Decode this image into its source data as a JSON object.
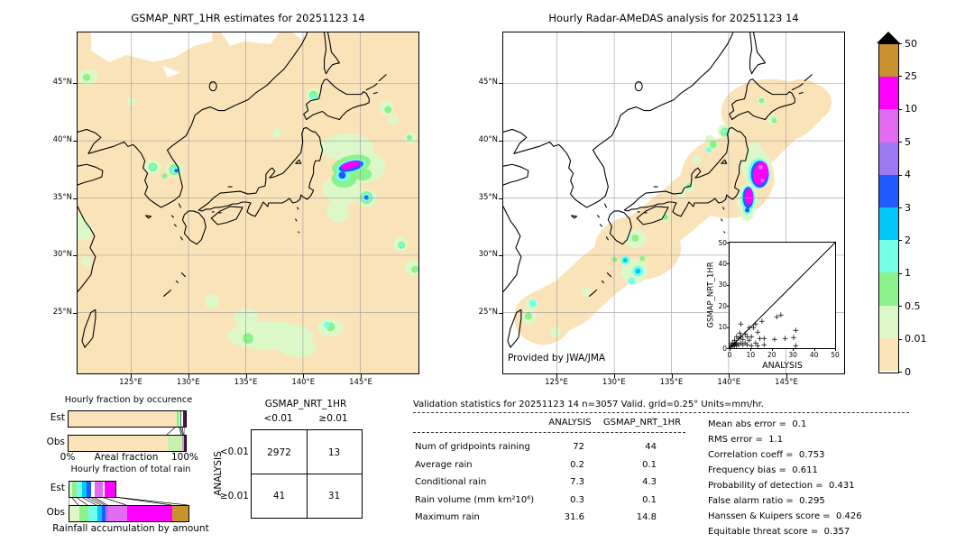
{
  "palette": {
    "peach": "#fbe3b9",
    "palegreen": "#dcf8c9",
    "palegreen2": "#c9efad",
    "green": "#8bf18b",
    "cyan": "#74ffe8",
    "skyblue": "#00c8f8",
    "blue": "#1e5cff",
    "mpurple": "#9c79f3",
    "orchid": "#e36bf2",
    "magenta": "#ff00ff",
    "tan": "#c8932e",
    "white": "#ffffff",
    "gray": "#b0b0b0",
    "teal": "#1f7a4d",
    "plum": "#5b0a66"
  },
  "chart_data": [
    {
      "id": "left_map",
      "type": "map",
      "title": "GSMAP_NRT_1HR estimates for 20251123 14",
      "lat_ticks": [
        "45°N",
        "40°N",
        "35°N",
        "30°N",
        "25°N"
      ],
      "lon_ticks": [
        "125°E",
        "130°E",
        "135°E",
        "140°E",
        "145°E"
      ]
    },
    {
      "id": "right_map",
      "type": "map",
      "title": "Hourly Radar-AMeDAS analysis for 20251123 14",
      "lat_ticks": [
        "45°N",
        "40°N",
        "35°N",
        "30°N",
        "25°N"
      ],
      "lon_ticks": [
        "125°E",
        "130°E",
        "135°E",
        "140°E",
        "145°E"
      ],
      "credit": "Provided by JWA/JMA"
    },
    {
      "id": "inset_scatter",
      "type": "scatter",
      "xlabel": "ANALYSIS",
      "ylabel": "GSMAP_NRT_1HR",
      "xlim": [
        0,
        50
      ],
      "ylim": [
        0,
        50
      ],
      "diagonal": true,
      "x_ticks": [
        "0",
        "10",
        "20",
        "30",
        "40",
        "50"
      ],
      "y_ticks": [
        "0",
        "10",
        "20",
        "30",
        "40",
        "50"
      ],
      "points": [
        [
          0.3,
          0.3
        ],
        [
          0.5,
          1
        ],
        [
          1,
          0.5
        ],
        [
          1,
          2
        ],
        [
          1.5,
          1
        ],
        [
          2,
          0.8
        ],
        [
          2,
          3
        ],
        [
          2.5,
          1.5
        ],
        [
          3,
          0.5
        ],
        [
          3,
          2
        ],
        [
          3,
          5
        ],
        [
          4,
          1
        ],
        [
          4,
          4
        ],
        [
          4.5,
          6.5
        ],
        [
          5,
          2
        ],
        [
          5,
          5
        ],
        [
          5,
          11
        ],
        [
          6,
          1
        ],
        [
          6,
          3.5
        ],
        [
          7,
          2
        ],
        [
          7,
          6
        ],
        [
          8,
          1
        ],
        [
          8,
          5
        ],
        [
          9,
          3
        ],
        [
          9,
          9
        ],
        [
          10,
          0.5
        ],
        [
          10,
          5
        ],
        [
          11,
          9
        ],
        [
          12,
          2
        ],
        [
          12,
          11
        ],
        [
          13,
          0.5
        ],
        [
          13,
          7
        ],
        [
          14,
          4
        ],
        [
          15,
          12
        ],
        [
          16,
          1
        ],
        [
          16,
          4
        ],
        [
          21,
          3.5
        ],
        [
          22,
          14.5
        ],
        [
          24,
          15
        ],
        [
          26,
          4
        ],
        [
          30,
          4.5
        ],
        [
          31,
          8
        ],
        [
          31,
          0.5
        ]
      ]
    },
    {
      "id": "colorbar",
      "type": "colorbar",
      "tick_labels": [
        "50",
        "25",
        "10",
        "5",
        "4",
        "3",
        "2",
        "1",
        "0.5",
        "0.01",
        "0"
      ],
      "colors": [
        "tan",
        "magenta",
        "orchid",
        "mpurple",
        "blue",
        "skyblue",
        "cyan",
        "green",
        "palegreen",
        "peach"
      ],
      "overflow": "black-triangle"
    },
    {
      "id": "occurrence",
      "type": "bar",
      "title": "Hourly fraction by occurence",
      "xlabel": "Areal fraction",
      "x_min_label": "0%",
      "x_max_label": "100%",
      "rows": [
        {
          "label": "Est",
          "segments": [
            [
              92.3,
              "peach"
            ],
            [
              2.7,
              "green"
            ],
            [
              1.2,
              "teal"
            ],
            [
              1.5,
              "white"
            ],
            [
              2.3,
              "plum"
            ]
          ]
        },
        {
          "label": "Obs",
          "segments": [
            [
              84.6,
              "peach"
            ],
            [
              12.3,
              "palegreen2"
            ],
            [
              1.2,
              "gray"
            ],
            [
              1.9,
              "plum"
            ]
          ]
        }
      ]
    },
    {
      "id": "total_rain",
      "type": "bar",
      "title": "Hourly fraction of total rain",
      "xlabel": "Rainfall accumulation by amount",
      "rows": [
        {
          "label": "Est",
          "segments": [
            [
              2.3,
              "palegreen"
            ],
            [
              3.8,
              "green"
            ],
            [
              4.5,
              "cyan"
            ],
            [
              3.8,
              "skyblue"
            ],
            [
              3.8,
              "blue"
            ],
            [
              3.0,
              "white"
            ],
            [
              6.8,
              "orchid"
            ],
            [
              1.5,
              "white"
            ],
            [
              9.1,
              "magenta"
            ]
          ]
        },
        {
          "label": "Obs",
          "segments": [
            [
              8.3,
              "palegreen"
            ],
            [
              7.6,
              "green"
            ],
            [
              7.6,
              "cyan"
            ],
            [
              3.8,
              "skyblue"
            ],
            [
              3.0,
              "blue"
            ],
            [
              2.3,
              "mpurple"
            ],
            [
              15.9,
              "orchid"
            ],
            [
              37.9,
              "magenta"
            ],
            [
              13.6,
              "tan"
            ]
          ]
        }
      ]
    },
    {
      "id": "contingency",
      "type": "table",
      "col_header": "GSMAP_NRT_1HR",
      "row_header": "ANALYSIS",
      "col_labels": [
        "<0.01",
        "≥0.01"
      ],
      "row_labels": [
        "<0.01",
        "≥0.01"
      ],
      "matrix": [
        [
          "2972",
          "13"
        ],
        [
          "41",
          "31"
        ]
      ]
    },
    {
      "id": "validation",
      "type": "table",
      "title": "Validation statistics for 20251123 14  n=3057 Valid. grid=0.25° Units=mm/hr.",
      "col_headers": [
        "ANALYSIS",
        "GSMAP_NRT_1HR"
      ],
      "rows": [
        {
          "label": "Num of gridpoints raining",
          "analysis": "72",
          "gsmap": "44"
        },
        {
          "label": "Average rain",
          "analysis": "0.2",
          "gsmap": "0.1"
        },
        {
          "label": "Conditional rain",
          "analysis": "7.3",
          "gsmap": "4.3"
        },
        {
          "label": "Rain volume (mm km²10⁶)",
          "analysis": "0.3",
          "gsmap": "0.1"
        },
        {
          "label": "Maximum rain",
          "analysis": "31.6",
          "gsmap": "14.8"
        }
      ],
      "metrics": [
        {
          "label": "Mean abs error",
          "value": "0.1"
        },
        {
          "label": "RMS error",
          "value": "1.1"
        },
        {
          "label": "Correlation coeff",
          "value": "0.753"
        },
        {
          "label": "Frequency bias",
          "value": "0.611"
        },
        {
          "label": "Probability of detection",
          "value": "0.431"
        },
        {
          "label": "False alarm ratio",
          "value": "0.295"
        },
        {
          "label": "Hanssen & Kuipers score",
          "value": "0.426"
        },
        {
          "label": "Equitable threat score",
          "value": "0.357"
        }
      ]
    }
  ]
}
